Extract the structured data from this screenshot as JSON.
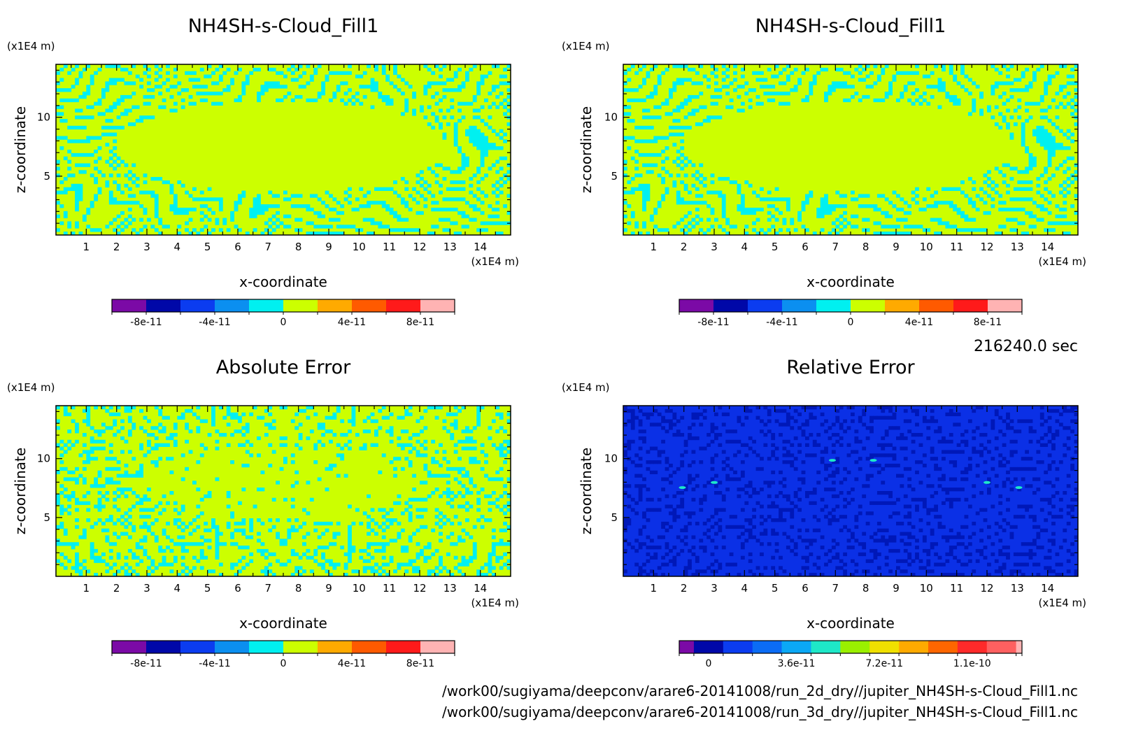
{
  "timestamp": "216240.0 sec",
  "file_paths": [
    "/work00/sugiyama/deepconv/arare6-20141008/run_2d_dry//jupiter_NH4SH-s-Cloud_Fill1.nc",
    "/work00/sugiyama/deepconv/arare6-20141008/run_3d_dry//jupiter_NH4SH-s-Cloud_Fill1.nc"
  ],
  "chart_data": [
    {
      "type": "heatmap",
      "title": "NH4SH-s-Cloud_Fill1",
      "xlabel": "x-coordinate",
      "ylabel": "z-coordinate",
      "x_unit": "(x1E4 m)",
      "y_unit": "(x1E4 m)",
      "xlim": [
        0,
        15
      ],
      "ylim": [
        0,
        14.5
      ],
      "xticks": [
        1,
        2,
        3,
        4,
        5,
        6,
        7,
        8,
        9,
        10,
        11,
        12,
        13,
        14
      ],
      "yticks": [
        5,
        10
      ],
      "field": "banded",
      "colorbar": {
        "colors": [
          "#7b0aa6",
          "#0008a8",
          "#0b3cf0",
          "#0b8ff0",
          "#00f0f0",
          "#ccff00",
          "#ffaa00",
          "#ff5a00",
          "#ff1a1a",
          "#ffb3b3"
        ],
        "labels": [
          {
            "text": "-8e-11",
            "pos": 1
          },
          {
            "text": "-4e-11",
            "pos": 3
          },
          {
            "text": "0",
            "pos": 5
          },
          {
            "text": "4e-11",
            "pos": 7
          },
          {
            "text": "8e-11",
            "pos": 9
          }
        ]
      }
    },
    {
      "type": "heatmap",
      "title": "NH4SH-s-Cloud_Fill1",
      "xlabel": "x-coordinate",
      "ylabel": "z-coordinate",
      "x_unit": "(x1E4 m)",
      "y_unit": "(x1E4 m)",
      "xlim": [
        0,
        15
      ],
      "ylim": [
        0,
        14.5
      ],
      "xticks": [
        1,
        2,
        3,
        4,
        5,
        6,
        7,
        8,
        9,
        10,
        11,
        12,
        13,
        14
      ],
      "yticks": [
        5,
        10
      ],
      "field": "banded",
      "colorbar": {
        "colors": [
          "#7b0aa6",
          "#0008a8",
          "#0b3cf0",
          "#0b8ff0",
          "#00f0f0",
          "#ccff00",
          "#ffaa00",
          "#ff5a00",
          "#ff1a1a",
          "#ffb3b3"
        ],
        "labels": [
          {
            "text": "-8e-11",
            "pos": 1
          },
          {
            "text": "-4e-11",
            "pos": 3
          },
          {
            "text": "0",
            "pos": 5
          },
          {
            "text": "4e-11",
            "pos": 7
          },
          {
            "text": "8e-11",
            "pos": 9
          }
        ]
      }
    },
    {
      "type": "heatmap",
      "title": "Absolute Error",
      "xlabel": "x-coordinate",
      "ylabel": "z-coordinate",
      "x_unit": "(x1E4 m)",
      "y_unit": "(x1E4 m)",
      "xlim": [
        0,
        15
      ],
      "ylim": [
        0,
        14.5
      ],
      "xticks": [
        1,
        2,
        3,
        4,
        5,
        6,
        7,
        8,
        9,
        10,
        11,
        12,
        13,
        14
      ],
      "yticks": [
        5,
        10
      ],
      "field": "scattered",
      "colorbar": {
        "colors": [
          "#7b0aa6",
          "#0008a8",
          "#0b3cf0",
          "#0b8ff0",
          "#00f0f0",
          "#ccff00",
          "#ffaa00",
          "#ff5a00",
          "#ff1a1a",
          "#ffb3b3"
        ],
        "labels": [
          {
            "text": "-8e-11",
            "pos": 1
          },
          {
            "text": "-4e-11",
            "pos": 3
          },
          {
            "text": "0",
            "pos": 5
          },
          {
            "text": "4e-11",
            "pos": 7
          },
          {
            "text": "8e-11",
            "pos": 9
          }
        ]
      }
    },
    {
      "type": "heatmap",
      "title": "Relative Error",
      "xlabel": "x-coordinate",
      "ylabel": "z-coordinate",
      "x_unit": "(x1E4 m)",
      "y_unit": "(x1E4 m)",
      "xlim": [
        0,
        15
      ],
      "ylim": [
        0,
        14.5
      ],
      "xticks": [
        1,
        2,
        3,
        4,
        5,
        6,
        7,
        8,
        9,
        10,
        11,
        12,
        13,
        14
      ],
      "yticks": [
        5,
        10
      ],
      "field": "relative",
      "colorbar": {
        "colors": [
          "#7b0aa6",
          "#0008a8",
          "#0b3cf0",
          "#0b6cf5",
          "#0ba8f5",
          "#1ee8c8",
          "#9af000",
          "#f0e000",
          "#ffaa00",
          "#ff6600",
          "#ff2a2a",
          "#ff6060",
          "#ffb3b3"
        ],
        "widths": [
          0.5,
          1,
          1,
          1,
          1,
          1,
          1,
          1,
          1,
          1,
          1,
          1,
          0.2
        ],
        "labels": [
          {
            "text": "0",
            "pos": 1.5
          },
          {
            "text": "3.6e-11",
            "pos": 4.5
          },
          {
            "text": "7.2e-11",
            "pos": 7.5
          },
          {
            "text": "1.1e-10",
            "pos": 10.5
          }
        ]
      }
    }
  ]
}
